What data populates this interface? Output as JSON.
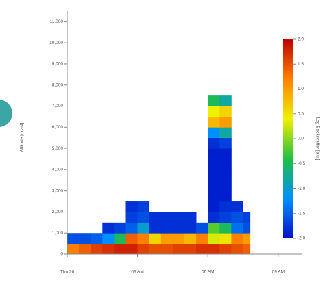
{
  "chart_data": {
    "type": "heatmap",
    "ylabel": "Altitude [m asl]",
    "colorbar_label": "Log Backscatter [a.u.]",
    "xlim": [
      0,
      10
    ],
    "xticks": [
      {
        "value": 0,
        "label": "Thu 26"
      },
      {
        "value": 3,
        "label": "03 AM"
      },
      {
        "value": 6,
        "label": "06 AM"
      },
      {
        "value": 9,
        "label": "09 AM"
      }
    ],
    "ylim": [
      0,
      11500
    ],
    "yticks": [
      0,
      {
        "value": 1000,
        "label": "1,000"
      },
      {
        "value": 2000,
        "label": "2,000"
      },
      {
        "value": 3000,
        "label": "3,000"
      },
      {
        "value": 4000,
        "label": "4,000"
      },
      {
        "value": 5000,
        "label": "5,000"
      },
      {
        "value": 6000,
        "label": "6,000"
      },
      {
        "value": 7000,
        "label": "7,000"
      },
      {
        "value": 8000,
        "label": "8,000"
      },
      {
        "value": 9000,
        "label": "9,000"
      },
      {
        "value": 10000,
        "label": "10,000"
      },
      {
        "value": 11000,
        "label": "11,000"
      }
    ],
    "zlim": [
      -2,
      2
    ],
    "zticks": [
      {
        "value": 2,
        "label": "2.0"
      },
      {
        "value": 1.5,
        "label": "1.5"
      },
      {
        "value": 1,
        "label": "1.0"
      },
      {
        "value": 0.5,
        "label": "0.5"
      },
      {
        "value": 0,
        "label": "0.0"
      },
      {
        "value": -0.5,
        "label": "-0.5"
      },
      {
        "value": -1,
        "label": "-1.0"
      },
      {
        "value": -1.5,
        "label": "-1.5"
      },
      {
        "value": -2,
        "label": "-2.0"
      }
    ],
    "colorscale": [
      "#0010c8",
      "#0090ff",
      "#20c040",
      "#f0f000",
      "#ff8000",
      "#c00000"
    ],
    "x_edges": [
      0,
      0.5,
      1,
      1.5,
      2,
      2.5,
      3,
      3.5,
      4,
      4.5,
      5,
      5.5,
      6,
      6.5,
      7,
      7.5,
      7.8
    ],
    "y_edges": [
      0,
      500,
      1000,
      1500,
      2000,
      2500,
      3000,
      3500,
      4000,
      4500,
      5000,
      5500,
      6000,
      6500,
      7000,
      7500
    ],
    "z": [
      [
        1.2,
        1.4,
        1.6,
        1.7,
        1.8,
        1.8,
        1.6,
        1.5,
        1.5,
        1.6,
        1.6,
        1.7,
        1.7,
        1.6,
        1.5,
        1.4
      ],
      [
        -1.6,
        -1.6,
        -1.5,
        -1.2,
        -0.5,
        1.4,
        1.2,
        0.6,
        1.0,
        1.0,
        0.8,
        1.2,
        0.3,
        0.5,
        1.2,
        1.0
      ],
      [
        null,
        null,
        null,
        -1.8,
        -1.7,
        -1.5,
        -1.0,
        -1.8,
        -1.8,
        -1.8,
        -1.8,
        -1.6,
        -0.2,
        -0.5,
        -1.4,
        -1.6
      ],
      [
        null,
        null,
        null,
        null,
        null,
        -1.7,
        -1.6,
        -1.8,
        -1.8,
        -1.8,
        -1.8,
        null,
        -1.8,
        -1.7,
        -1.6,
        -1.7
      ],
      [
        null,
        null,
        null,
        null,
        null,
        -1.8,
        -1.7,
        null,
        null,
        null,
        null,
        null,
        -1.9,
        -1.8,
        -1.8,
        null
      ],
      [
        null,
        null,
        null,
        null,
        null,
        null,
        null,
        null,
        null,
        null,
        null,
        null,
        -1.9,
        -1.9,
        null,
        null
      ],
      [
        null,
        null,
        null,
        null,
        null,
        null,
        null,
        null,
        null,
        null,
        null,
        null,
        -1.9,
        -1.9,
        null,
        null
      ],
      [
        null,
        null,
        null,
        null,
        null,
        null,
        null,
        null,
        null,
        null,
        null,
        null,
        -1.9,
        -1.9,
        null,
        null
      ],
      [
        null,
        null,
        null,
        null,
        null,
        null,
        null,
        null,
        null,
        null,
        null,
        null,
        -1.9,
        -1.9,
        null,
        null
      ],
      [
        null,
        null,
        null,
        null,
        null,
        null,
        null,
        null,
        null,
        null,
        null,
        null,
        -1.9,
        -1.9,
        null,
        null
      ],
      [
        null,
        null,
        null,
        null,
        null,
        null,
        null,
        null,
        null,
        null,
        null,
        null,
        -1.8,
        -1.7,
        null,
        null
      ],
      [
        null,
        null,
        null,
        null,
        null,
        null,
        null,
        null,
        null,
        null,
        null,
        null,
        -1.2,
        -0.8,
        null,
        null
      ],
      [
        null,
        null,
        null,
        null,
        null,
        null,
        null,
        null,
        null,
        null,
        null,
        null,
        0.8,
        1.0,
        null,
        null
      ],
      [
        null,
        null,
        null,
        null,
        null,
        null,
        null,
        null,
        null,
        null,
        null,
        null,
        0.4,
        0.6,
        null,
        null
      ],
      [
        null,
        null,
        null,
        null,
        null,
        null,
        null,
        null,
        null,
        null,
        null,
        null,
        -0.5,
        -0.8,
        null,
        null
      ]
    ]
  }
}
